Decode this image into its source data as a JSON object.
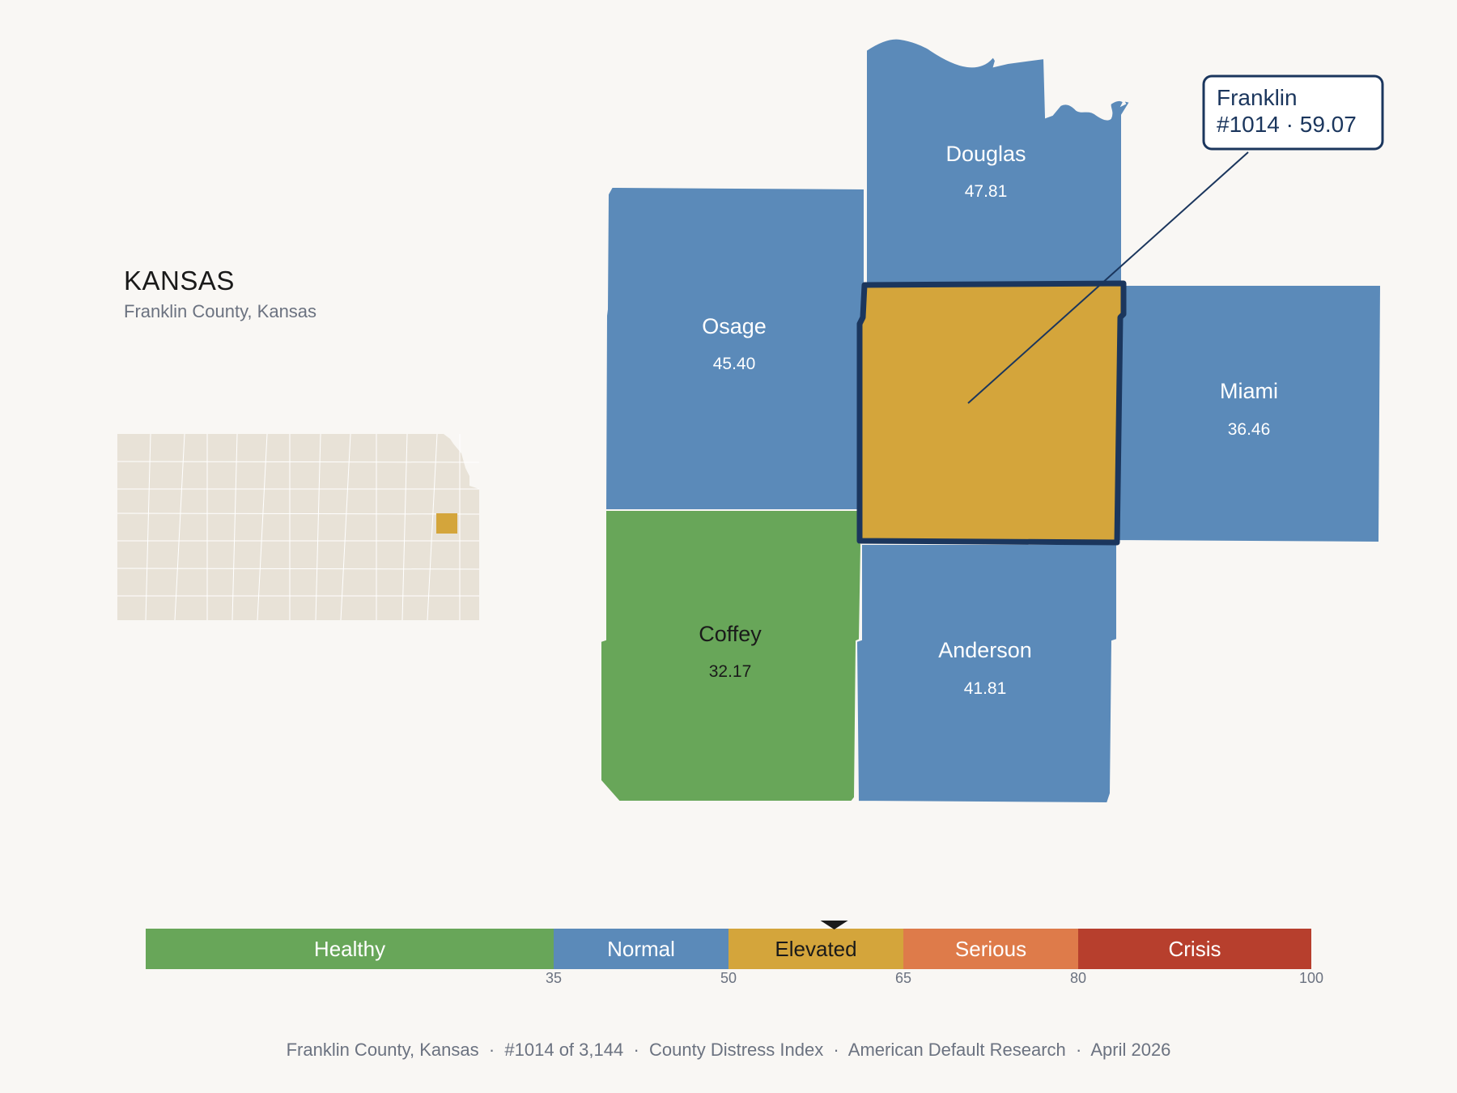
{
  "state": {
    "name": "KANSAS",
    "subtitle": "Franklin County, Kansas"
  },
  "colors": {
    "healthy": "#68a659",
    "normal": "#5b8ab9",
    "elevated": "#d4a53b",
    "serious": "#de7b4a",
    "crisis": "#b73f2d",
    "inset_fill": "#e8e2d7",
    "outline": "#1b365d"
  },
  "counties": [
    {
      "name": "Douglas",
      "value": "47.81",
      "category": "normal"
    },
    {
      "name": "Osage",
      "value": "45.40",
      "category": "normal"
    },
    {
      "name": "Franklin",
      "value": "59.07",
      "category": "elevated",
      "highlighted": true
    },
    {
      "name": "Miami",
      "value": "36.46",
      "category": "normal"
    },
    {
      "name": "Coffey",
      "value": "32.17",
      "category": "healthy"
    },
    {
      "name": "Anderson",
      "value": "41.81",
      "category": "normal"
    }
  ],
  "callout": {
    "line1": "Franklin",
    "line2": "#1014 · 59.07"
  },
  "scale": {
    "min": 0,
    "max": 100,
    "marker_value": 59.07,
    "bands": [
      {
        "label": "Healthy",
        "from": 0,
        "to": 35,
        "category": "healthy"
      },
      {
        "label": "Normal",
        "from": 35,
        "to": 50,
        "category": "normal"
      },
      {
        "label": "Elevated",
        "from": 50,
        "to": 65,
        "category": "elevated"
      },
      {
        "label": "Serious",
        "from": 65,
        "to": 80,
        "category": "serious"
      },
      {
        "label": "Crisis",
        "from": 80,
        "to": 100,
        "category": "crisis"
      }
    ],
    "ticks": [
      "35",
      "50",
      "65",
      "80",
      "100"
    ]
  },
  "footer": {
    "county": "Franklin County, Kansas",
    "rank": "#1014 of 3,144",
    "index": "County Distress Index",
    "source": "American Default Research",
    "date": "April 2026"
  }
}
